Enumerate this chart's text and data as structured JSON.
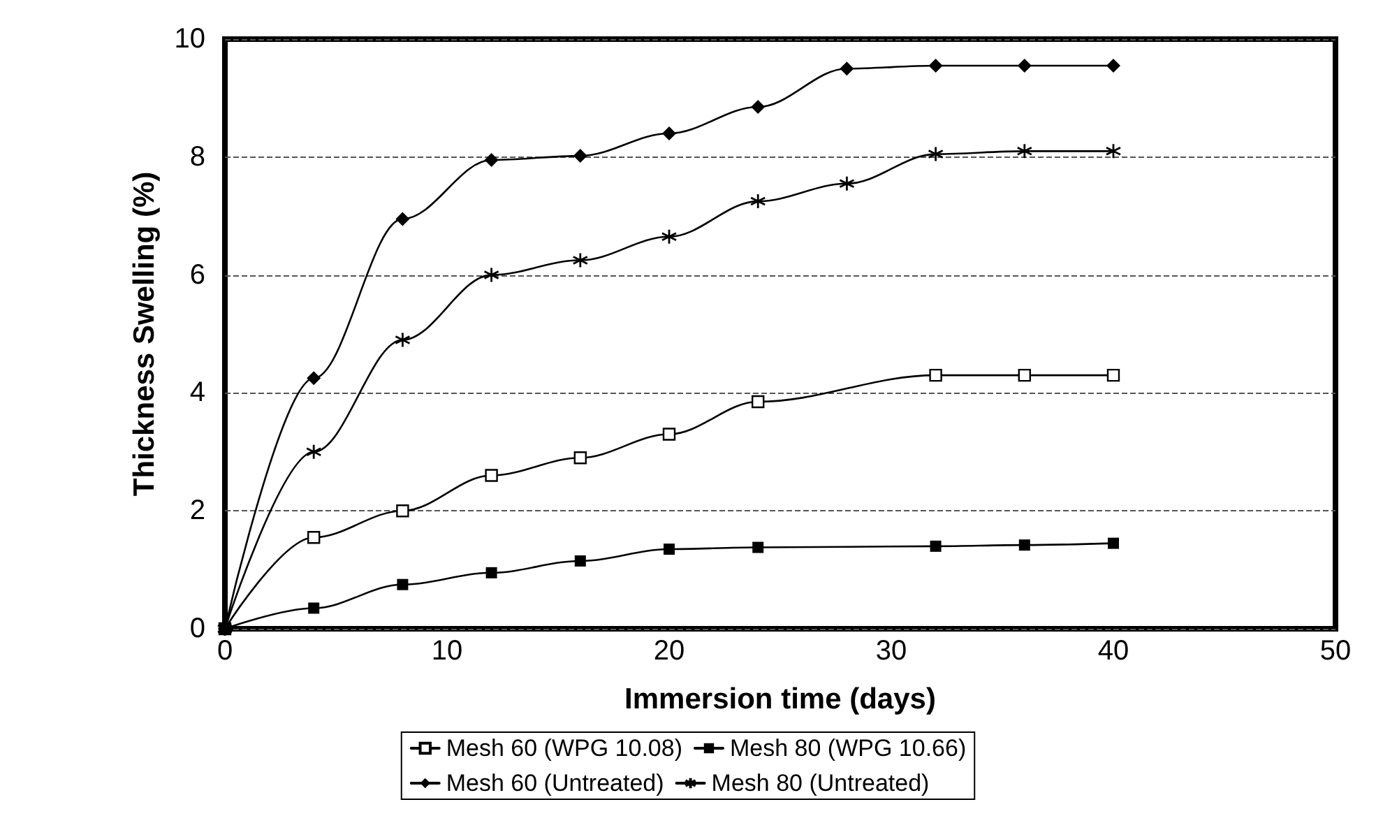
{
  "chart_data": {
    "type": "line",
    "xlabel": "Immersion time (days)",
    "ylabel": "Thickness Swelling (%)",
    "xlim": [
      0,
      50
    ],
    "xticks": [
      0,
      10,
      20,
      30,
      40,
      50
    ],
    "ylim": [
      0,
      10
    ],
    "yticks": [
      0,
      2,
      4,
      6,
      8,
      10
    ],
    "grid": "y",
    "legend": "bottom",
    "line_style": "solid",
    "series": [
      {
        "name": "Mesh 60 (WPG 10.08)",
        "color": "#000000",
        "marker": "square",
        "x": [
          0,
          4,
          8,
          12,
          16,
          20,
          24,
          32,
          36,
          40
        ],
        "values": [
          0,
          1.55,
          2.0,
          2.6,
          2.9,
          3.3,
          3.85,
          4.3,
          4.3,
          4.3
        ]
      },
      {
        "name": "Mesh 80 (WPG 10.66)",
        "color": "#000000",
        "marker": "square",
        "x": [
          0,
          4,
          8,
          12,
          16,
          20,
          24,
          32,
          36,
          40
        ],
        "values": [
          0,
          0.35,
          0.75,
          0.95,
          1.15,
          1.35,
          1.38,
          1.4,
          1.42,
          1.45
        ]
      },
      {
        "name": "Mesh 60 (Untreated)",
        "color": "#000000",
        "marker": "diamond",
        "x": [
          0,
          4,
          8,
          12,
          16,
          20,
          24,
          28,
          32,
          36,
          40
        ],
        "values": [
          0,
          4.25,
          6.95,
          7.95,
          8.02,
          8.4,
          8.85,
          9.5,
          9.55,
          9.55,
          9.55
        ]
      },
      {
        "name": "Mesh 80 (Untreated)",
        "color": "#000000",
        "marker": "cross",
        "x": [
          0,
          4,
          8,
          12,
          16,
          20,
          24,
          28,
          32,
          36,
          40
        ],
        "values": [
          0,
          3.0,
          4.9,
          6.0,
          6.25,
          6.65,
          7.25,
          7.55,
          8.05,
          8.1,
          8.1
        ]
      }
    ]
  }
}
